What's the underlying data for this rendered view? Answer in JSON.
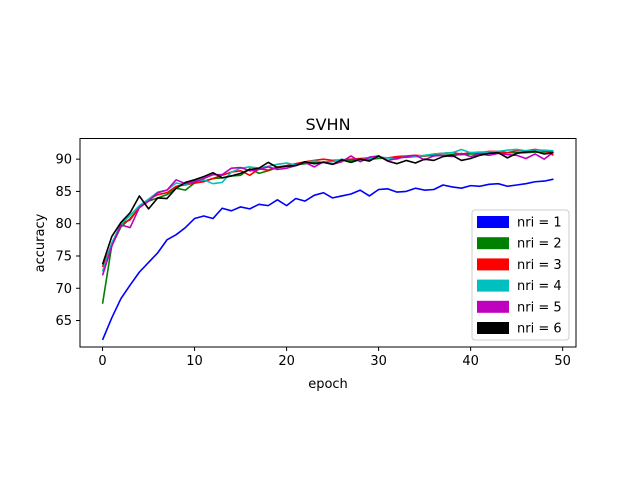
{
  "chart_data": {
    "type": "line",
    "title": "SVHN",
    "xlabel": "epoch",
    "ylabel": "accuracy",
    "xlim": [
      -2.45,
      51.45
    ],
    "ylim": [
      60.9,
      93.2
    ],
    "xticks": [
      0,
      10,
      20,
      30,
      40,
      50
    ],
    "yticks": [
      65,
      70,
      75,
      80,
      85,
      90
    ],
    "legend_position": "lower-right",
    "series": [
      {
        "name": "nri = 1",
        "color": "#0000ff",
        "values": [
          62.0,
          65.4,
          68.4,
          70.5,
          72.5,
          74.0,
          75.5,
          77.5,
          78.3,
          79.4,
          80.8,
          81.2,
          80.8,
          82.4,
          82.0,
          82.6,
          82.3,
          83.0,
          82.8,
          83.7,
          82.8,
          83.9,
          83.5,
          84.4,
          84.8,
          84.0,
          84.3,
          84.6,
          85.2,
          84.3,
          85.3,
          85.4,
          84.9,
          85.0,
          85.5,
          85.2,
          85.3,
          86.0,
          85.7,
          85.5,
          85.9,
          85.8,
          86.1,
          86.2,
          85.8,
          86.0,
          86.2,
          86.5,
          86.6,
          86.9
        ]
      },
      {
        "name": "nri = 2",
        "color": "#008000",
        "values": [
          67.6,
          76.6,
          79.5,
          80.8,
          82.5,
          83.5,
          84.0,
          84.5,
          85.5,
          85.2,
          86.3,
          86.6,
          87.0,
          87.1,
          87.4,
          87.5,
          88.5,
          87.8,
          88.2,
          88.7,
          89.0,
          89.1,
          89.3,
          89.5,
          89.5,
          89.7,
          89.8,
          89.8,
          89.9,
          90.0,
          90.1,
          90.2,
          90.2,
          90.3,
          90.4,
          90.5,
          90.6,
          90.6,
          90.7,
          90.7,
          90.8,
          90.8,
          90.9,
          90.9,
          91.0,
          91.0,
          91.0,
          91.1,
          91.1,
          91.2
        ]
      },
      {
        "name": "nri = 3",
        "color": "#ff0000",
        "values": [
          73.3,
          76.8,
          80.0,
          80.6,
          82.5,
          83.8,
          84.5,
          84.8,
          85.8,
          86.0,
          86.3,
          86.5,
          87.0,
          87.5,
          88.0,
          88.2,
          87.5,
          88.5,
          88.3,
          88.8,
          89.0,
          89.3,
          89.6,
          89.8,
          90.0,
          89.8,
          89.9,
          90.0,
          90.1,
          90.2,
          90.3,
          90.2,
          90.4,
          90.5,
          90.6,
          90.5,
          90.8,
          90.9,
          91.0,
          90.8,
          91.0,
          91.0,
          91.2,
          91.2,
          91.0,
          91.3,
          91.3,
          91.5,
          91.3,
          90.6
        ]
      },
      {
        "name": "nri = 4",
        "color": "#00bfbf",
        "values": [
          72.6,
          77.0,
          79.9,
          81.3,
          82.8,
          83.8,
          84.9,
          85.2,
          86.3,
          86.0,
          86.6,
          86.8,
          86.2,
          86.4,
          88.0,
          88.6,
          88.8,
          88.6,
          88.9,
          89.2,
          89.4,
          89.1,
          89.5,
          89.7,
          89.5,
          89.6,
          90.0,
          89.5,
          89.9,
          90.1,
          90.3,
          90.2,
          90.0,
          90.5,
          90.4,
          90.6,
          90.8,
          90.9,
          91.0,
          91.5,
          91.0,
          91.1,
          91.1,
          91.2,
          91.4,
          91.5,
          91.3,
          91.4,
          91.4,
          91.3
        ]
      },
      {
        "name": "nri = 5",
        "color": "#bf00bf",
        "values": [
          72.0,
          76.5,
          79.8,
          79.4,
          82.5,
          83.5,
          84.8,
          85.2,
          86.8,
          86.2,
          86.5,
          87.0,
          87.6,
          87.6,
          88.6,
          88.7,
          88.2,
          88.4,
          88.8,
          88.4,
          88.6,
          89.0,
          89.5,
          88.8,
          89.6,
          89.2,
          89.6,
          90.5,
          89.6,
          90.3,
          90.5,
          89.8,
          90.1,
          90.4,
          90.6,
          89.9,
          90.5,
          90.6,
          90.4,
          90.9,
          90.4,
          90.8,
          90.6,
          90.9,
          90.7,
          90.6,
          90.1,
          90.8,
          90.0,
          91.1
        ]
      },
      {
        "name": "nri = 6",
        "color": "#000000",
        "values": [
          73.7,
          78.0,
          80.2,
          81.7,
          84.3,
          82.3,
          84.0,
          83.9,
          85.5,
          86.4,
          86.8,
          87.3,
          87.9,
          87.1,
          87.4,
          87.8,
          88.4,
          88.6,
          89.5,
          88.7,
          88.9,
          89.0,
          89.6,
          89.3,
          89.5,
          89.2,
          89.9,
          89.5,
          90.0,
          89.7,
          90.5,
          89.7,
          89.3,
          89.8,
          89.4,
          90.0,
          89.8,
          90.4,
          90.6,
          89.8,
          90.1,
          90.6,
          90.9,
          91.0,
          90.2,
          90.9,
          91.1,
          91.2,
          90.8,
          91.0
        ]
      }
    ]
  }
}
